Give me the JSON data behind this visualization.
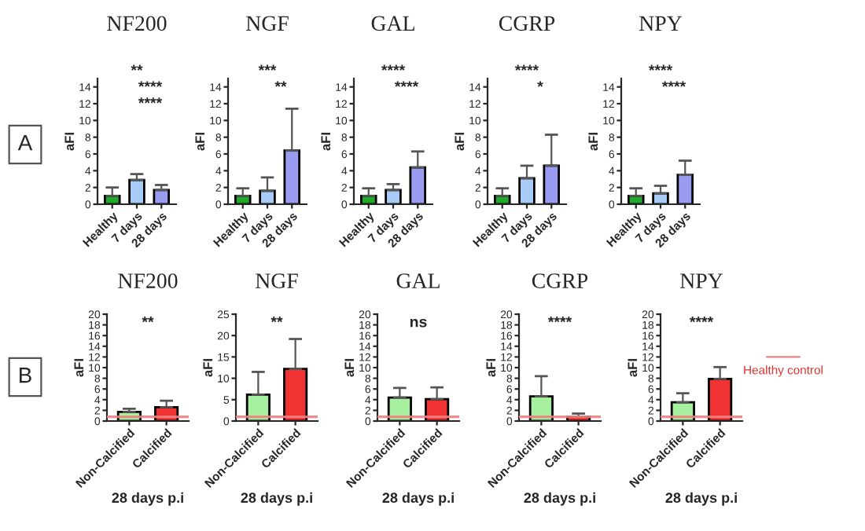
{
  "chart_data": [
    {
      "type": "other",
      "annotations": [
        "A"
      ]
    },
    {
      "type": "bar",
      "title": "NF200",
      "ylabel": "aFI",
      "categories": [
        "Healthy",
        "7 days",
        "28 days"
      ],
      "values": [
        1.0,
        2.9,
        1.7
      ],
      "errors": [
        1.0,
        0.7,
        0.6
      ],
      "colors": [
        "#1faa2a",
        "#a9cbf7",
        "#9a9cf2"
      ],
      "ylim": [
        0,
        15
      ],
      "yticks": [
        0,
        2,
        4,
        6,
        8,
        10,
        12,
        14
      ],
      "annotations": [
        "****",
        "****",
        "**"
      ]
    },
    {
      "type": "bar",
      "title": "NGF",
      "ylabel": "aFI",
      "categories": [
        "Healthy",
        "7 days",
        "28 days"
      ],
      "values": [
        1.0,
        1.6,
        6.4
      ],
      "errors": [
        0.9,
        1.6,
        5.0
      ],
      "colors": [
        "#1faa2a",
        "#a9cbf7",
        "#9a9cf2"
      ],
      "ylim": [
        0,
        15
      ],
      "yticks": [
        0,
        2,
        4,
        6,
        8,
        10,
        12,
        14
      ],
      "annotations": [
        "**",
        "***"
      ]
    },
    {
      "type": "bar",
      "title": "GAL",
      "ylabel": "aFI",
      "categories": [
        "Healthy",
        "7 days",
        "28 days"
      ],
      "values": [
        1.0,
        1.7,
        4.4
      ],
      "errors": [
        0.9,
        0.7,
        1.9
      ],
      "colors": [
        "#1faa2a",
        "#a9cbf7",
        "#9a9cf2"
      ],
      "ylim": [
        0,
        15
      ],
      "yticks": [
        0,
        2,
        4,
        6,
        8,
        10,
        12,
        14
      ],
      "annotations": [
        "****",
        "****"
      ]
    },
    {
      "type": "bar",
      "title": "CGRP",
      "ylabel": "aFI",
      "categories": [
        "Healthy",
        "7 days",
        "28 days"
      ],
      "values": [
        1.0,
        3.1,
        4.6
      ],
      "errors": [
        0.9,
        1.5,
        3.7
      ],
      "colors": [
        "#1faa2a",
        "#a9cbf7",
        "#9a9cf2"
      ],
      "ylim": [
        0,
        15
      ],
      "yticks": [
        0,
        2,
        4,
        6,
        8,
        10,
        12,
        14
      ],
      "annotations": [
        "*",
        "****"
      ]
    },
    {
      "type": "bar",
      "title": "NPY",
      "ylabel": "aFI",
      "categories": [
        "Healthy",
        "7 days",
        "28 days"
      ],
      "values": [
        1.0,
        1.3,
        3.5
      ],
      "errors": [
        0.9,
        0.9,
        1.7
      ],
      "colors": [
        "#1faa2a",
        "#a9cbf7",
        "#9a9cf2"
      ],
      "ylim": [
        0,
        15
      ],
      "yticks": [
        0,
        2,
        4,
        6,
        8,
        10,
        12,
        14
      ],
      "annotations": [
        "****",
        "****"
      ]
    },
    {
      "type": "other",
      "annotations": [
        "B"
      ]
    },
    {
      "type": "bar",
      "title": "NF200",
      "ylabel": "aFI",
      "xlabel": "28 days p.i",
      "categories": [
        "Non-Calcified",
        "Calcified"
      ],
      "values": [
        1.7,
        2.6
      ],
      "errors": [
        0.6,
        1.2
      ],
      "colors": [
        "#a6f0a0",
        "#f03232"
      ],
      "ylim": [
        0,
        20
      ],
      "yticks": [
        0,
        2,
        4,
        6,
        8,
        10,
        12,
        14,
        16,
        18,
        20
      ],
      "ref_lines": [
        {
          "axis": "y",
          "value": 0.8,
          "color": "#f08080"
        }
      ],
      "annotations": [
        "**"
      ]
    },
    {
      "type": "bar",
      "title": "NGF",
      "ylabel": "aFI",
      "xlabel": "28 days p.i",
      "categories": [
        "Non-Calcified",
        "Calcified"
      ],
      "values": [
        6.2,
        12.2
      ],
      "errors": [
        5.3,
        7.0
      ],
      "colors": [
        "#a6f0a0",
        "#f03232"
      ],
      "ylim": [
        0,
        25
      ],
      "yticks": [
        0,
        5,
        10,
        15,
        20,
        25
      ],
      "ref_lines": [
        {
          "axis": "y",
          "value": 1,
          "color": "#f08080"
        }
      ],
      "annotations": [
        "**"
      ]
    },
    {
      "type": "bar",
      "title": "GAL",
      "ylabel": "aFI",
      "xlabel": "28 days p.i",
      "categories": [
        "Non-Calcified",
        "Calcified"
      ],
      "values": [
        4.4,
        4.1
      ],
      "errors": [
        1.8,
        2.2
      ],
      "colors": [
        "#a6f0a0",
        "#f03232"
      ],
      "ylim": [
        0,
        20
      ],
      "yticks": [
        0,
        2,
        4,
        6,
        8,
        10,
        12,
        14,
        16,
        18,
        20
      ],
      "ref_lines": [
        {
          "axis": "y",
          "value": 0.8,
          "color": "#f08080"
        }
      ],
      "annotations": [
        "ns"
      ]
    },
    {
      "type": "bar",
      "title": "CGRP",
      "ylabel": "aFI",
      "xlabel": "28 days p.i",
      "categories": [
        "Non-Calcified",
        "Calcified"
      ],
      "values": [
        4.6,
        0.8
      ],
      "errors": [
        3.8,
        0.6
      ],
      "colors": [
        "#a6f0a0",
        "#f03232"
      ],
      "ylim": [
        0,
        20
      ],
      "yticks": [
        0,
        2,
        4,
        6,
        8,
        10,
        12,
        14,
        16,
        18,
        20
      ],
      "ref_lines": [
        {
          "axis": "y",
          "value": 0.8,
          "color": "#f08080"
        }
      ],
      "annotations": [
        "****"
      ]
    },
    {
      "type": "bar",
      "title": "NPY",
      "ylabel": "aFI",
      "xlabel": "28 days p.i",
      "categories": [
        "Non-Calcified",
        "Calcified"
      ],
      "values": [
        3.5,
        7.9
      ],
      "errors": [
        1.7,
        2.2
      ],
      "colors": [
        "#a6f0a0",
        "#f03232"
      ],
      "ylim": [
        0,
        20
      ],
      "yticks": [
        0,
        2,
        4,
        6,
        8,
        10,
        12,
        14,
        16,
        18,
        20
      ],
      "ref_lines": [
        {
          "axis": "y",
          "value": 0.8,
          "color": "#f08080",
          "label": "Healthy control"
        }
      ],
      "annotations": [
        "****"
      ]
    }
  ]
}
